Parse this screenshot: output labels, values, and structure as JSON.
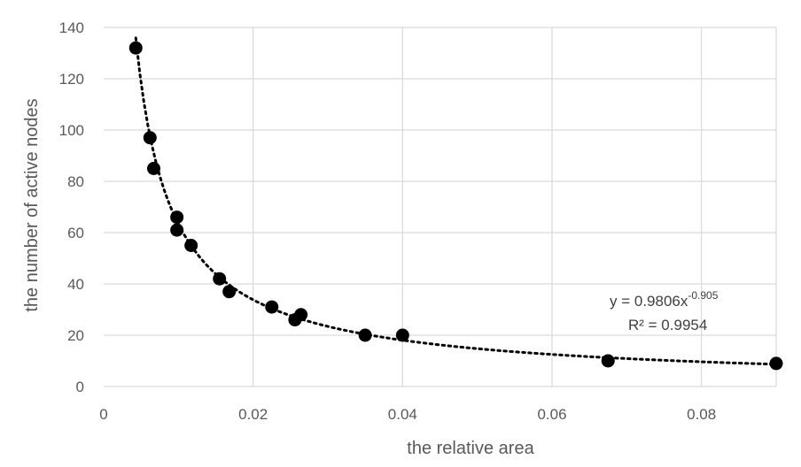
{
  "chart_data": {
    "type": "scatter",
    "xlabel": "the relative area",
    "ylabel": "the number of active nodes",
    "xlim": [
      0,
      0.09
    ],
    "ylim": [
      0,
      140
    ],
    "x_ticks": [
      "0",
      "0.02",
      "0.04",
      "0.06",
      "0.08"
    ],
    "y_ticks": [
      "0",
      "20",
      "40",
      "60",
      "80",
      "100",
      "120",
      "140"
    ],
    "grid": true,
    "series": [
      {
        "marker": "filled-circle",
        "color": "#000000",
        "points": [
          {
            "x": 0.0043,
            "y": 132
          },
          {
            "x": 0.0062,
            "y": 97
          },
          {
            "x": 0.0067,
            "y": 85
          },
          {
            "x": 0.0098,
            "y": 66
          },
          {
            "x": 0.0098,
            "y": 61
          },
          {
            "x": 0.0117,
            "y": 55
          },
          {
            "x": 0.0155,
            "y": 42
          },
          {
            "x": 0.0168,
            "y": 37
          },
          {
            "x": 0.0225,
            "y": 31
          },
          {
            "x": 0.0256,
            "y": 26
          },
          {
            "x": 0.0264,
            "y": 28
          },
          {
            "x": 0.035,
            "y": 20
          },
          {
            "x": 0.04,
            "y": 20
          },
          {
            "x": 0.0675,
            "y": 10
          },
          {
            "x": 0.09,
            "y": 9
          }
        ]
      }
    ],
    "trendline": {
      "type": "power",
      "a": 0.9806,
      "b": -0.905,
      "color": "#000000",
      "style": "dotted"
    },
    "annotations": {
      "equation_base": "y = 0.9806x",
      "equation_exponent": "-0.905",
      "r_squared": "R² = 0.9954"
    }
  }
}
